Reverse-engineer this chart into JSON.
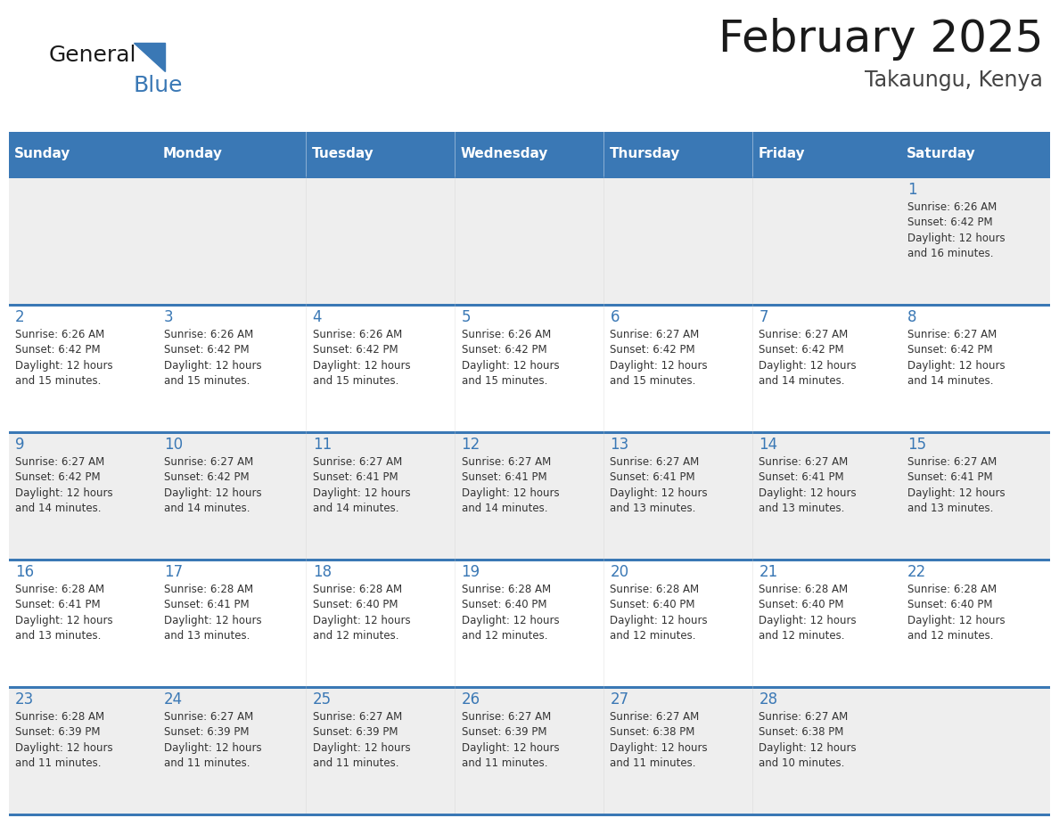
{
  "title": "February 2025",
  "subtitle": "Takaungu, Kenya",
  "logo_text1": "General",
  "logo_text2": "Blue",
  "header_bg": "#3a78b5",
  "header_text_color": "#ffffff",
  "days_of_week": [
    "Sunday",
    "Monday",
    "Tuesday",
    "Wednesday",
    "Thursday",
    "Friday",
    "Saturday"
  ],
  "cell_bg_odd": "#eeeeee",
  "cell_bg_even": "#ffffff",
  "grid_line_color": "#3a78b5",
  "day_number_color": "#3a78b5",
  "info_text_color": "#333333",
  "calendar": [
    [
      null,
      null,
      null,
      null,
      null,
      null,
      {
        "day": 1,
        "sunrise": "6:26 AM",
        "sunset": "6:42 PM",
        "daylight": "12 hours\nand 16 minutes."
      }
    ],
    [
      {
        "day": 2,
        "sunrise": "6:26 AM",
        "sunset": "6:42 PM",
        "daylight": "12 hours\nand 15 minutes."
      },
      {
        "day": 3,
        "sunrise": "6:26 AM",
        "sunset": "6:42 PM",
        "daylight": "12 hours\nand 15 minutes."
      },
      {
        "day": 4,
        "sunrise": "6:26 AM",
        "sunset": "6:42 PM",
        "daylight": "12 hours\nand 15 minutes."
      },
      {
        "day": 5,
        "sunrise": "6:26 AM",
        "sunset": "6:42 PM",
        "daylight": "12 hours\nand 15 minutes."
      },
      {
        "day": 6,
        "sunrise": "6:27 AM",
        "sunset": "6:42 PM",
        "daylight": "12 hours\nand 15 minutes."
      },
      {
        "day": 7,
        "sunrise": "6:27 AM",
        "sunset": "6:42 PM",
        "daylight": "12 hours\nand 14 minutes."
      },
      {
        "day": 8,
        "sunrise": "6:27 AM",
        "sunset": "6:42 PM",
        "daylight": "12 hours\nand 14 minutes."
      }
    ],
    [
      {
        "day": 9,
        "sunrise": "6:27 AM",
        "sunset": "6:42 PM",
        "daylight": "12 hours\nand 14 minutes."
      },
      {
        "day": 10,
        "sunrise": "6:27 AM",
        "sunset": "6:42 PM",
        "daylight": "12 hours\nand 14 minutes."
      },
      {
        "day": 11,
        "sunrise": "6:27 AM",
        "sunset": "6:41 PM",
        "daylight": "12 hours\nand 14 minutes."
      },
      {
        "day": 12,
        "sunrise": "6:27 AM",
        "sunset": "6:41 PM",
        "daylight": "12 hours\nand 14 minutes."
      },
      {
        "day": 13,
        "sunrise": "6:27 AM",
        "sunset": "6:41 PM",
        "daylight": "12 hours\nand 13 minutes."
      },
      {
        "day": 14,
        "sunrise": "6:27 AM",
        "sunset": "6:41 PM",
        "daylight": "12 hours\nand 13 minutes."
      },
      {
        "day": 15,
        "sunrise": "6:27 AM",
        "sunset": "6:41 PM",
        "daylight": "12 hours\nand 13 minutes."
      }
    ],
    [
      {
        "day": 16,
        "sunrise": "6:28 AM",
        "sunset": "6:41 PM",
        "daylight": "12 hours\nand 13 minutes."
      },
      {
        "day": 17,
        "sunrise": "6:28 AM",
        "sunset": "6:41 PM",
        "daylight": "12 hours\nand 13 minutes."
      },
      {
        "day": 18,
        "sunrise": "6:28 AM",
        "sunset": "6:40 PM",
        "daylight": "12 hours\nand 12 minutes."
      },
      {
        "day": 19,
        "sunrise": "6:28 AM",
        "sunset": "6:40 PM",
        "daylight": "12 hours\nand 12 minutes."
      },
      {
        "day": 20,
        "sunrise": "6:28 AM",
        "sunset": "6:40 PM",
        "daylight": "12 hours\nand 12 minutes."
      },
      {
        "day": 21,
        "sunrise": "6:28 AM",
        "sunset": "6:40 PM",
        "daylight": "12 hours\nand 12 minutes."
      },
      {
        "day": 22,
        "sunrise": "6:28 AM",
        "sunset": "6:40 PM",
        "daylight": "12 hours\nand 12 minutes."
      }
    ],
    [
      {
        "day": 23,
        "sunrise": "6:28 AM",
        "sunset": "6:39 PM",
        "daylight": "12 hours\nand 11 minutes."
      },
      {
        "day": 24,
        "sunrise": "6:27 AM",
        "sunset": "6:39 PM",
        "daylight": "12 hours\nand 11 minutes."
      },
      {
        "day": 25,
        "sunrise": "6:27 AM",
        "sunset": "6:39 PM",
        "daylight": "12 hours\nand 11 minutes."
      },
      {
        "day": 26,
        "sunrise": "6:27 AM",
        "sunset": "6:39 PM",
        "daylight": "12 hours\nand 11 minutes."
      },
      {
        "day": 27,
        "sunrise": "6:27 AM",
        "sunset": "6:38 PM",
        "daylight": "12 hours\nand 11 minutes."
      },
      {
        "day": 28,
        "sunrise": "6:27 AM",
        "sunset": "6:38 PM",
        "daylight": "12 hours\nand 10 minutes."
      },
      null
    ]
  ]
}
